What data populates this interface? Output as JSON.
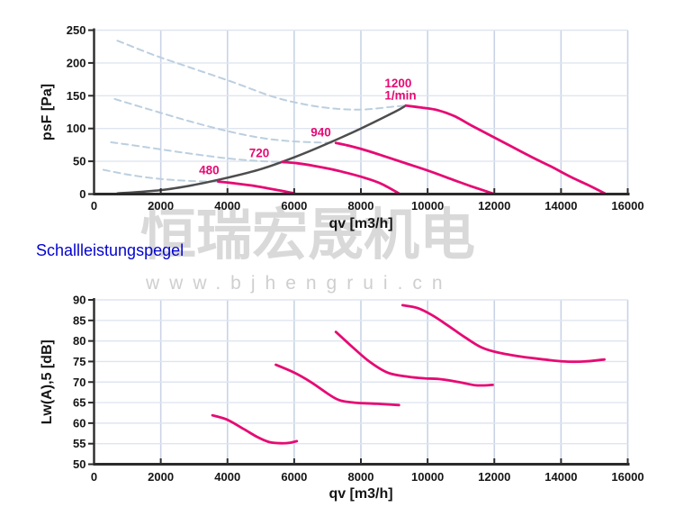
{
  "section_label": "Schallleistungspegel",
  "watermark": {
    "cjk": "恒瑞宏晟机电",
    "url": "www.bjhengrui.cn"
  },
  "colors": {
    "magenta": "#e60a73",
    "system_gray": "#4d4d4d",
    "dashed_blue": "#bccfdf",
    "grid_vertical": "#c9d3e6",
    "grid_horizontal": "#dfe5f0",
    "axis": "#2b2b2b",
    "heading_blue": "#0404cd",
    "watermark_gray": "#d9d9d9"
  },
  "chart_data": [
    {
      "type": "line",
      "title": "",
      "xlabel": "qv [m3/h]",
      "ylabel": "psF [Pa]",
      "xlim": [
        0,
        16000
      ],
      "ylim": [
        0,
        250
      ],
      "xticks": [
        0,
        2000,
        4000,
        6000,
        8000,
        10000,
        12000,
        14000,
        16000
      ],
      "yticks": [
        0,
        50,
        100,
        150,
        200,
        250
      ],
      "grid": true,
      "legend": "none",
      "series": [
        {
          "name": "dashed-ref-480",
          "color_key": "dashed_blue",
          "dashed": true,
          "width": 2,
          "points": [
            [
              280,
              37
            ],
            [
              1100,
              29
            ],
            [
              2000,
              23
            ],
            [
              3000,
              19.8
            ],
            [
              3720,
              19
            ]
          ]
        },
        {
          "name": "dashed-ref-720",
          "color_key": "dashed_blue",
          "dashed": true,
          "width": 2,
          "points": [
            [
              510,
              79
            ],
            [
              1500,
              72
            ],
            [
              2700,
              63
            ],
            [
              3900,
              55
            ],
            [
              4900,
              50.5
            ],
            [
              5640,
              49
            ]
          ]
        },
        {
          "name": "dashed-ref-940",
          "color_key": "dashed_blue",
          "dashed": true,
          "width": 2,
          "points": [
            [
              620,
              145
            ],
            [
              1600,
              130
            ],
            [
              2800,
              112
            ],
            [
              4000,
              96
            ],
            [
              5100,
              85
            ],
            [
              6100,
              80
            ],
            [
              7250,
              78
            ]
          ]
        },
        {
          "name": "dashed-ref-1200",
          "color_key": "dashed_blue",
          "dashed": true,
          "width": 2,
          "points": [
            [
              700,
              234
            ],
            [
              1800,
              212
            ],
            [
              3000,
              191
            ],
            [
              4200,
              170
            ],
            [
              5400,
              148
            ],
            [
              6400,
              136
            ],
            [
              7300,
              130
            ],
            [
              8100,
              129
            ],
            [
              8900,
              133
            ],
            [
              9350,
              135
            ]
          ]
        },
        {
          "name": "system-curve",
          "color_key": "system_gray",
          "dashed": false,
          "width": 2.5,
          "points": [
            [
              700,
              1
            ],
            [
              2000,
              6
            ],
            [
              3000,
              14
            ],
            [
              4000,
              25
            ],
            [
              5000,
              38
            ],
            [
              6000,
              56
            ],
            [
              7000,
              77
            ],
            [
              8000,
              100
            ],
            [
              9000,
              125
            ],
            [
              9350,
              135
            ]
          ]
        },
        {
          "name": "pressure-480",
          "color_key": "magenta",
          "dashed": false,
          "width": 2.8,
          "points": [
            [
              3720,
              19
            ],
            [
              4200,
              16.5
            ],
            [
              4800,
              12.5
            ],
            [
              5400,
              7
            ],
            [
              6010,
              1
            ]
          ]
        },
        {
          "name": "pressure-720",
          "color_key": "magenta",
          "dashed": false,
          "width": 2.8,
          "points": [
            [
              5640,
              49
            ],
            [
              6100,
              47
            ],
            [
              6600,
              43
            ],
            [
              7100,
              38
            ],
            [
              7600,
              32
            ],
            [
              8100,
              25
            ],
            [
              8600,
              16
            ],
            [
              9140,
              1
            ]
          ]
        },
        {
          "name": "pressure-940",
          "color_key": "magenta",
          "dashed": false,
          "width": 2.8,
          "points": [
            [
              7250,
              78
            ],
            [
              7700,
              73
            ],
            [
              8200,
              66
            ],
            [
              8800,
              56
            ],
            [
              9400,
              46
            ],
            [
              10000,
              36
            ],
            [
              10700,
              23
            ],
            [
              11300,
              12
            ],
            [
              11950,
              1
            ]
          ]
        },
        {
          "name": "pressure-1200",
          "color_key": "magenta",
          "dashed": false,
          "width": 2.8,
          "points": [
            [
              9350,
              135
            ],
            [
              9800,
              132
            ],
            [
              10300,
              128
            ],
            [
              10800,
              119
            ],
            [
              11300,
              105
            ],
            [
              11900,
              89
            ],
            [
              12500,
              73
            ],
            [
              13100,
              57
            ],
            [
              13700,
              42
            ],
            [
              14300,
              26
            ],
            [
              14800,
              14
            ],
            [
              15310,
              1
            ]
          ]
        }
      ],
      "annotations": [
        {
          "text": "480",
          "x": 3450,
          "y": 30,
          "anchor": "middle"
        },
        {
          "text": "720",
          "x": 4950,
          "y": 56,
          "anchor": "middle"
        },
        {
          "text": "940",
          "x": 6800,
          "y": 88,
          "anchor": "middle"
        },
        {
          "text": "1200",
          "x": 8710,
          "y": 163,
          "anchor": "start"
        },
        {
          "text": "1/min",
          "x": 8710,
          "y": 144,
          "anchor": "start"
        }
      ]
    },
    {
      "type": "line",
      "title": "Schallleistungspegel",
      "xlabel": "qv [m3/h]",
      "ylabel": "Lw(A),5 [dB]",
      "xlim": [
        0,
        16000
      ],
      "ylim": [
        50,
        90
      ],
      "xticks": [
        0,
        2000,
        4000,
        6000,
        8000,
        10000,
        12000,
        14000,
        16000
      ],
      "yticks": [
        50,
        55,
        60,
        65,
        70,
        75,
        80,
        85,
        90
      ],
      "grid": true,
      "legend": "none",
      "series": [
        {
          "name": "sound-480",
          "color_key": "magenta",
          "dashed": false,
          "width": 2.8,
          "points": [
            [
              3550,
              61.9
            ],
            [
              4000,
              60.8
            ],
            [
              4500,
              58.5
            ],
            [
              4900,
              56.6
            ],
            [
              5250,
              55.4
            ],
            [
              5600,
              55.1
            ],
            [
              5850,
              55.2
            ],
            [
              6080,
              55.6
            ]
          ]
        },
        {
          "name": "sound-720",
          "color_key": "magenta",
          "dashed": false,
          "width": 2.8,
          "points": [
            [
              5450,
              74.2
            ],
            [
              6000,
              72.3
            ],
            [
              6500,
              70
            ],
            [
              7000,
              67.2
            ],
            [
              7350,
              65.6
            ],
            [
              7800,
              65
            ],
            [
              8500,
              64.7
            ],
            [
              9140,
              64.4
            ]
          ]
        },
        {
          "name": "sound-940",
          "color_key": "magenta",
          "dashed": false,
          "width": 2.8,
          "points": [
            [
              7250,
              82.2
            ],
            [
              7750,
              78.5
            ],
            [
              8250,
              75
            ],
            [
              8800,
              72.3
            ],
            [
              9400,
              71.3
            ],
            [
              9900,
              70.9
            ],
            [
              10400,
              70.7
            ],
            [
              11000,
              69.9
            ],
            [
              11450,
              69.2
            ],
            [
              11950,
              69.3
            ]
          ]
        },
        {
          "name": "sound-1200",
          "color_key": "magenta",
          "dashed": false,
          "width": 2.8,
          "points": [
            [
              9250,
              88.7
            ],
            [
              9700,
              88
            ],
            [
              10150,
              86.2
            ],
            [
              10600,
              83.8
            ],
            [
              11100,
              81
            ],
            [
              11600,
              78.5
            ],
            [
              12100,
              77.2
            ],
            [
              12800,
              76.2
            ],
            [
              13500,
              75.5
            ],
            [
              14100,
              75
            ],
            [
              14700,
              75
            ],
            [
              15300,
              75.5
            ]
          ]
        }
      ],
      "annotations": []
    }
  ]
}
